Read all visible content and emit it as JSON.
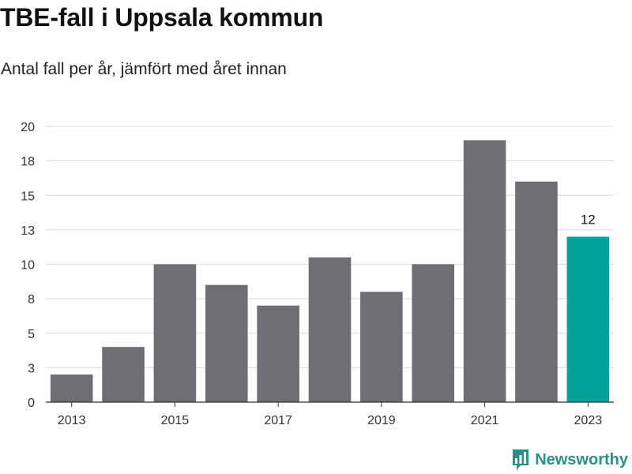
{
  "title": "TBE-fall i Uppsala kommun",
  "subtitle": "Antal fall per år, jämfört med året innan",
  "brand": {
    "name": "Newsworthy"
  },
  "colors": {
    "bar": "#6e6e73",
    "highlight": "#00a39a",
    "grid": "#d9d9d9",
    "axis": "#333333"
  },
  "chart_data": {
    "type": "bar",
    "categories": [
      "2013",
      "2014",
      "2015",
      "2016",
      "2017",
      "2018",
      "2019",
      "2020",
      "2021",
      "2022",
      "2023"
    ],
    "values": [
      2,
      4,
      10,
      8.5,
      7,
      10.5,
      8,
      10,
      19,
      16,
      12
    ],
    "highlight_index": 10,
    "data_labels": [
      {
        "index": 10,
        "text": "12"
      }
    ],
    "x_tick_labels": [
      "2013",
      "2015",
      "2017",
      "2019",
      "2021",
      "2023"
    ],
    "y_tick_labels": [
      "0",
      "3",
      "5",
      "8",
      "10",
      "13",
      "15",
      "18",
      "20"
    ],
    "ylim": [
      0,
      20
    ],
    "grid": true,
    "legend": "none",
    "xlabel": "",
    "ylabel": ""
  }
}
